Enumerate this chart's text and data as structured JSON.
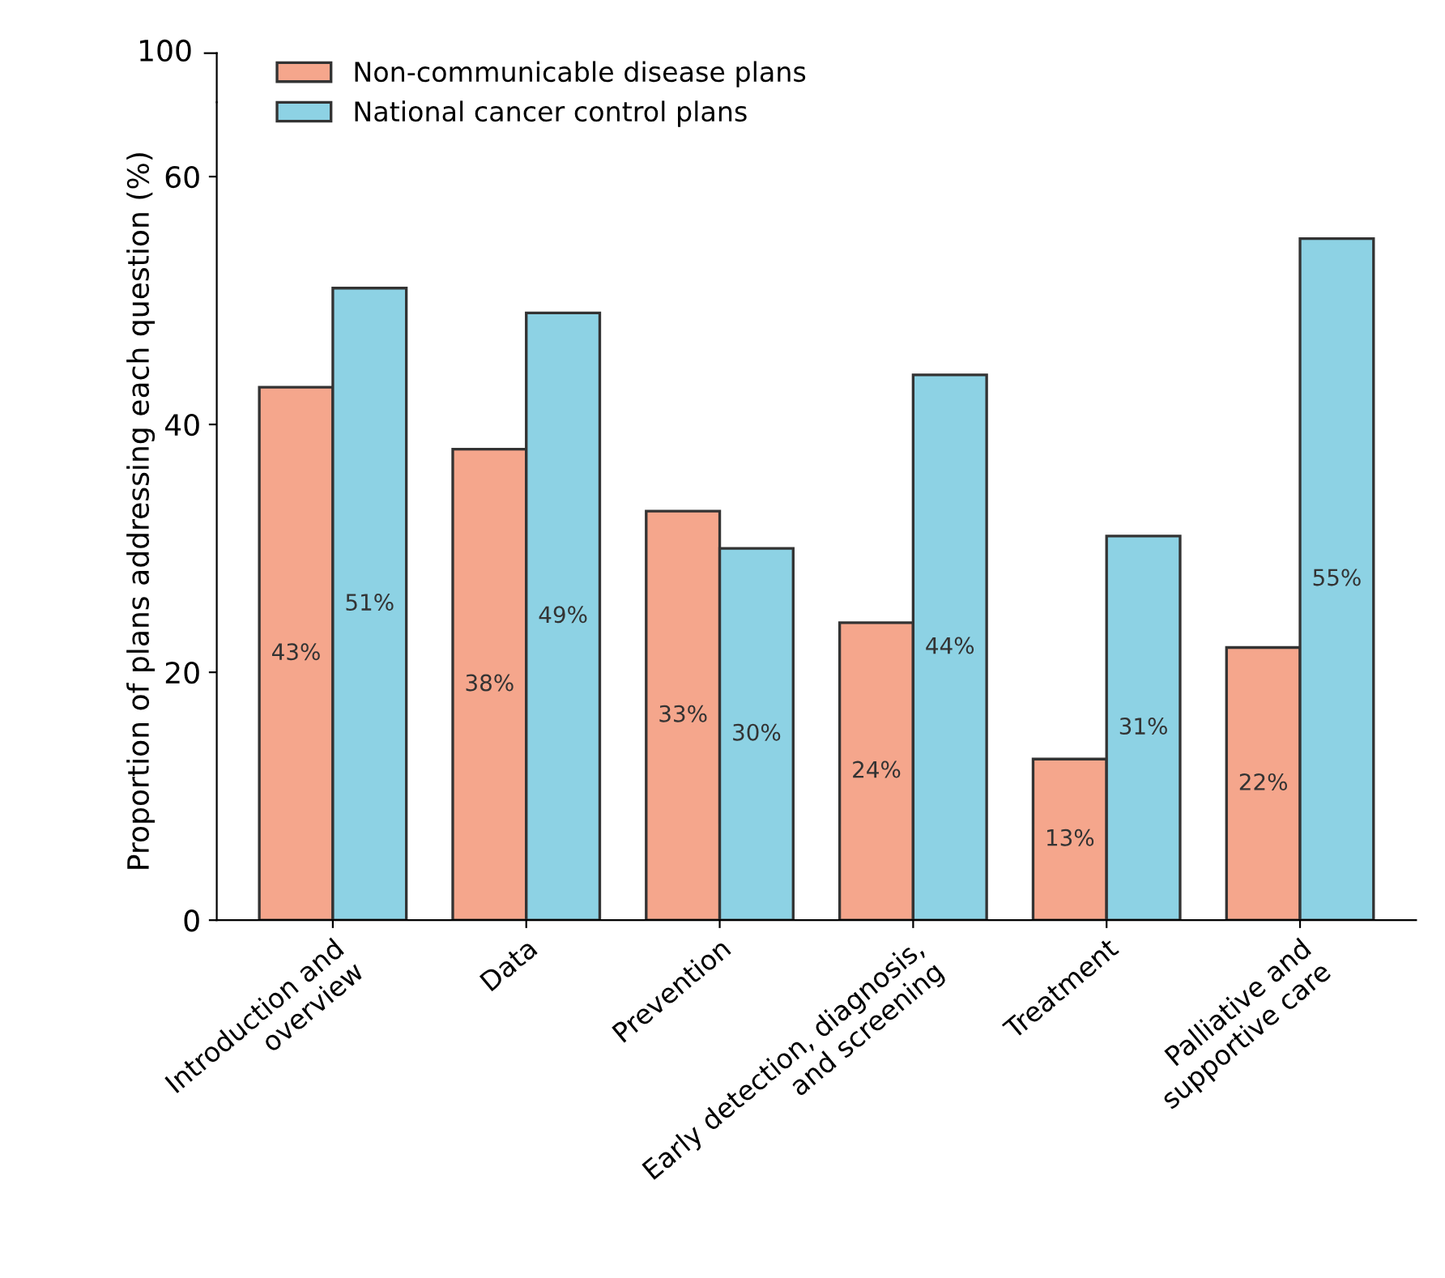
{
  "chart_data": {
    "type": "bar",
    "ylabel": "Proportion of plans addressing each question (%)",
    "categories": [
      "Introduction and\noverview",
      "Data",
      "Prevention",
      "Early detection, diagnosis,\nand screening",
      "Treatment",
      "Palliative and\nsupportive care"
    ],
    "series": [
      {
        "name": "Non-communicable disease plans",
        "color": "#f5a68c",
        "values": [
          43,
          38,
          33,
          24,
          13,
          22
        ],
        "value_labels": [
          "43%",
          "38%",
          "33%",
          "24%",
          "13%",
          "22%"
        ]
      },
      {
        "name": "National cancer control plans",
        "color": "#8dd2e4",
        "values": [
          51,
          49,
          30,
          44,
          31,
          55
        ],
        "value_labels": [
          "51%",
          "49%",
          "30%",
          "44%",
          "31%",
          "55%"
        ]
      }
    ],
    "ylim": [
      0,
      66
    ],
    "yticks": [
      0,
      20,
      40,
      60
    ],
    "annotations": [
      "100"
    ],
    "legend": "top left",
    "grid": false
  }
}
